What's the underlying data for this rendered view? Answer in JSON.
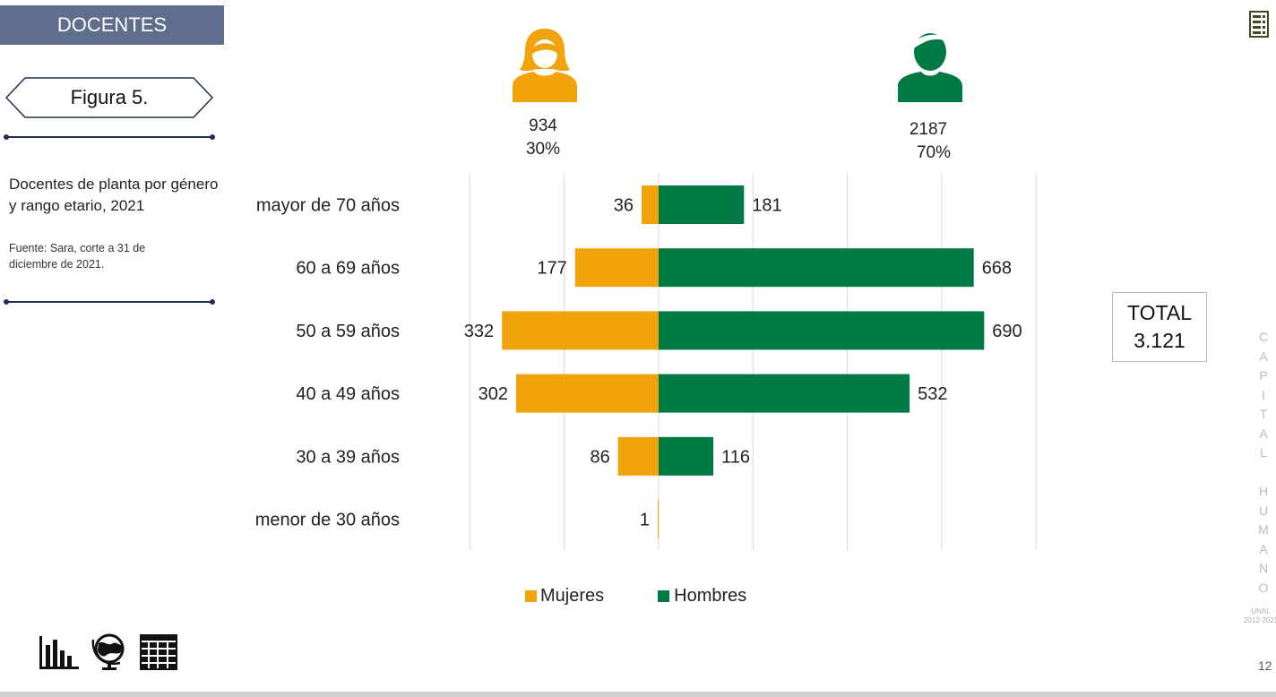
{
  "header": {
    "section": "DOCENTES",
    "figure": "Figura 5."
  },
  "description": "Docentes de planta por género y rango etario, 2021",
  "source": "Fuente: Sara, corte a 31 de diciembre de 2021.",
  "women": {
    "count": "934",
    "percent": "30%"
  },
  "men": {
    "count": "2187",
    "percent": "70%"
  },
  "total": {
    "label": "TOTAL",
    "value": "3.121"
  },
  "sidebar_vertical": "CAPITAL HUMANO",
  "brand": {
    "line1": "UNAL",
    "line2": "2012-2021"
  },
  "page_number": "12",
  "icons": [
    "table-list-icon",
    "bar-chart-icon",
    "globe-icon",
    "grid-table-icon"
  ],
  "colors": {
    "mujeres": "#f0a30a",
    "hombres": "#007a45",
    "tab": "#5f6e8c"
  },
  "chart_data": {
    "type": "bar",
    "orientation": "horizontal-diverging",
    "categories": [
      "mayor de 70 años",
      "60 a 69 años",
      "50 a 59 años",
      "40 a 49 años",
      "30 a 39 años",
      "menor de 30 años"
    ],
    "series": [
      {
        "name": "Mujeres",
        "values": [
          36,
          177,
          332,
          302,
          86,
          1
        ]
      },
      {
        "name": "Hombres",
        "values": [
          181,
          668,
          690,
          532,
          116,
          null
        ]
      }
    ],
    "xlim": [
      -400,
      800
    ],
    "grid": true,
    "legend_position": "bottom"
  }
}
